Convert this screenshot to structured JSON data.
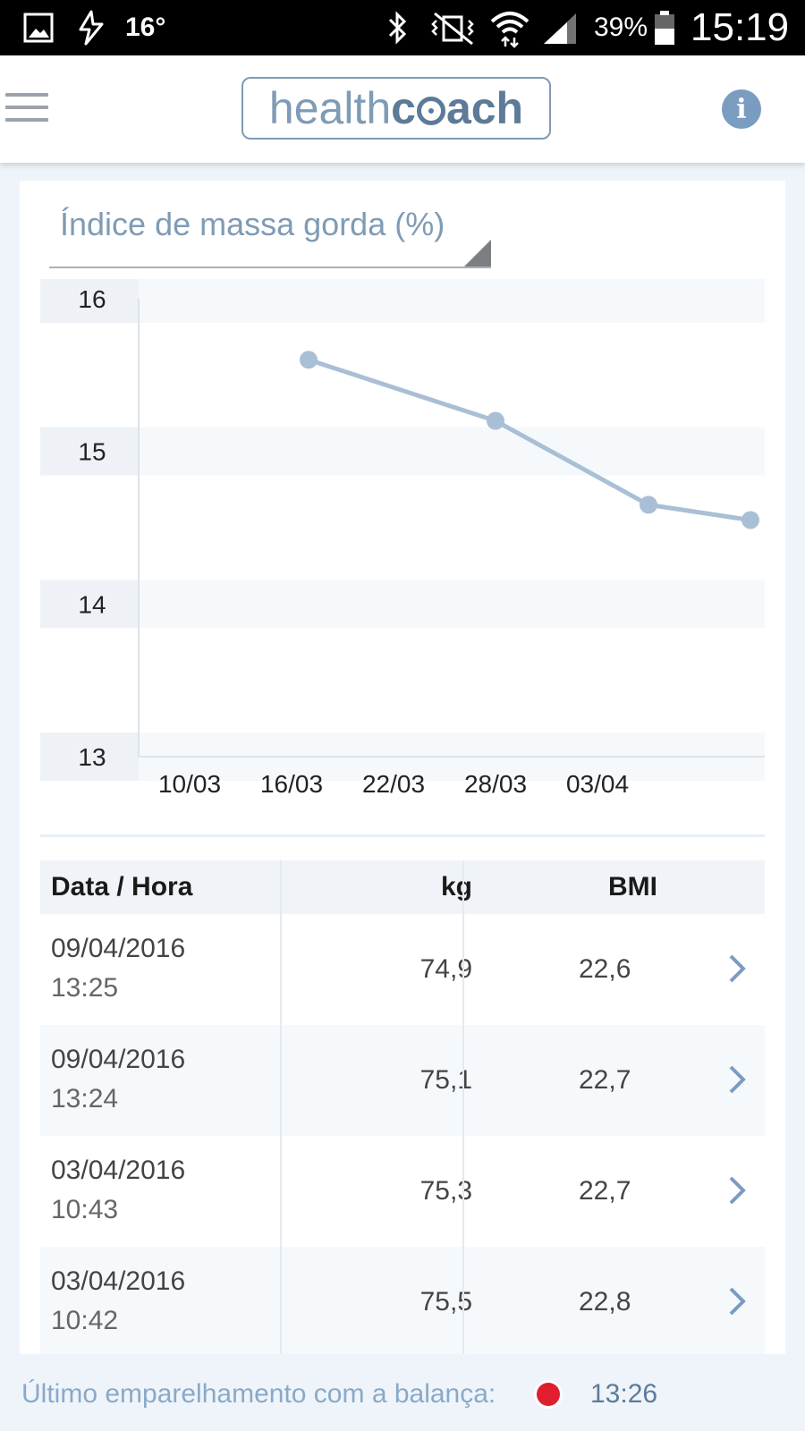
{
  "status_bar": {
    "temperature": "16°",
    "battery": "39%",
    "clock": "15:19"
  },
  "header": {
    "logo_part1": "health",
    "logo_part2": "c",
    "logo_part3": "ach"
  },
  "metric_selector": {
    "label": "Índice de massa gorda (%)"
  },
  "chart_data": {
    "type": "line",
    "title": "",
    "xlabel": "",
    "ylabel": "",
    "x_tick_labels": [
      "10/03",
      "16/03",
      "22/03",
      "28/03",
      "03/04"
    ],
    "y_tick_labels": [
      "16",
      "15",
      "14",
      "13"
    ],
    "ylim": [
      13,
      16
    ],
    "series": [
      {
        "x": [
          "17/03",
          "28/03",
          "06/04",
          "12/04"
        ],
        "values": [
          15.6,
          15.2,
          14.65,
          14.55
        ]
      }
    ],
    "colors": {
      "line": "#a9bfd6",
      "band": "#f6f9fc",
      "ylabel_bg": "#eef2f6"
    }
  },
  "table": {
    "headers": [
      "Data / Hora",
      "kg",
      "BMI"
    ],
    "rows": [
      {
        "date": "09/04/2016",
        "time": "13:25",
        "kg": "74,9",
        "bmi": "22,6"
      },
      {
        "date": "09/04/2016",
        "time": "13:24",
        "kg": "75,1",
        "bmi": "22,7"
      },
      {
        "date": "03/04/2016",
        "time": "10:43",
        "kg": "75,3",
        "bmi": "22,7"
      },
      {
        "date": "03/04/2016",
        "time": "10:42",
        "kg": "75,5",
        "bmi": "22,8"
      }
    ]
  },
  "footer": {
    "label": "Último emparelhamento com a balança:",
    "time": "13:26",
    "status_color": "#e01e2e"
  }
}
